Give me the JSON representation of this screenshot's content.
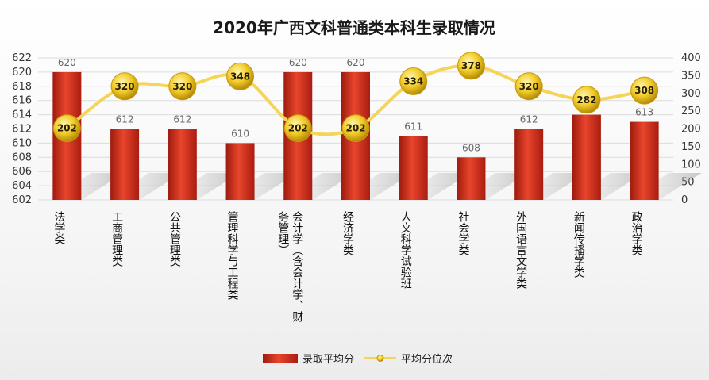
{
  "chart_data": {
    "type": "bar+line",
    "title": "2020年广西文科普通类本科生录取情况",
    "categories": [
      "法学类",
      "工商管理类",
      "公共管理类",
      "管理科学与工程类",
      "会计学（含会计学、财务管理）",
      "经济学类",
      "人文科学试验班",
      "社会学类",
      "外国语言文学类",
      "新闻传播学类",
      "政治学类"
    ],
    "category_lines": [
      [
        "法学类"
      ],
      [
        "工商管理类"
      ],
      [
        "公共管理类"
      ],
      [
        "管理科学与工程类"
      ],
      [
        "会计学（含会计学、财",
        "务管理）"
      ],
      [
        "经济学类"
      ],
      [
        "人文科学试验班"
      ],
      [
        "社会学类"
      ],
      [
        "外国语言文学类"
      ],
      [
        "新闻传播学类"
      ],
      [
        "政治学类"
      ]
    ],
    "series": [
      {
        "name": "录取平均分",
        "type": "bar",
        "axis": "left",
        "color": "#d9321e",
        "values": [
          620,
          612,
          612,
          610,
          620,
          620,
          611,
          608,
          612,
          614,
          613
        ]
      },
      {
        "name": "平均分位次",
        "type": "line",
        "axis": "right",
        "color": "#f5d45a",
        "values": [
          202,
          320,
          320,
          348,
          202,
          202,
          334,
          378,
          320,
          282,
          308
        ]
      }
    ],
    "y_left": {
      "min": 602,
      "max": 622,
      "step": 2
    },
    "y_right": {
      "min": 0,
      "max": 400,
      "step": 50
    },
    "grid": true,
    "legend_position": "bottom"
  }
}
